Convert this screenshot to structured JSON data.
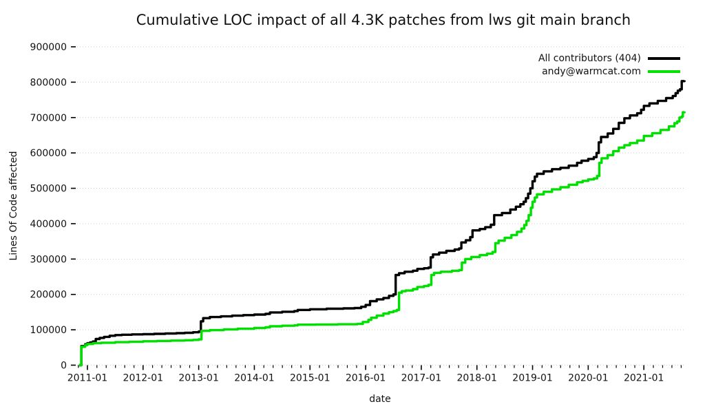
{
  "chart_data": {
    "type": "line",
    "title": "Cumulative LOC impact of all 4.3K patches from lws git main branch",
    "xlabel": "date",
    "ylabel": "Lines Of Code affected",
    "step_mode": "step-after",
    "grid": {
      "horizontal_dotted": true,
      "color": "#c9c9c9"
    },
    "legend_position": "top-right",
    "x_axis": {
      "range": [
        2010.79,
        2021.74
      ],
      "major_ticks": [
        {
          "value": 2011.0,
          "label": "2011-01"
        },
        {
          "value": 2012.0,
          "label": "2012-01"
        },
        {
          "value": 2013.0,
          "label": "2013-01"
        },
        {
          "value": 2014.0,
          "label": "2014-01"
        },
        {
          "value": 2015.0,
          "label": "2015-01"
        },
        {
          "value": 2016.0,
          "label": "2016-01"
        },
        {
          "value": 2017.0,
          "label": "2017-01"
        },
        {
          "value": 2018.0,
          "label": "2018-01"
        },
        {
          "value": 2019.0,
          "label": "2019-01"
        },
        {
          "value": 2020.0,
          "label": "2020-01"
        },
        {
          "value": 2021.0,
          "label": "2021-01"
        }
      ],
      "minor_tick_interval_years": 0.166667
    },
    "y_axis": {
      "range": [
        0,
        900000
      ],
      "tick_values": [
        0,
        100000,
        200000,
        300000,
        400000,
        500000,
        600000,
        700000,
        800000,
        900000
      ]
    },
    "series": [
      {
        "name": "All contributors (404)",
        "color": "#000000",
        "points": [
          [
            2010.85,
            0
          ],
          [
            2010.89,
            54000
          ],
          [
            2010.96,
            59000
          ],
          [
            2011.0,
            62000
          ],
          [
            2011.05,
            64500
          ],
          [
            2011.1,
            67000
          ],
          [
            2011.15,
            74000
          ],
          [
            2011.22,
            77000
          ],
          [
            2011.3,
            80000
          ],
          [
            2011.4,
            83000
          ],
          [
            2011.5,
            85000
          ],
          [
            2011.62,
            86000
          ],
          [
            2011.8,
            87000
          ],
          [
            2012.0,
            87500
          ],
          [
            2012.2,
            88500
          ],
          [
            2012.4,
            89500
          ],
          [
            2012.6,
            90500
          ],
          [
            2012.75,
            91500
          ],
          [
            2012.9,
            93000
          ],
          [
            2013.0,
            95000
          ],
          [
            2013.04,
            124000
          ],
          [
            2013.08,
            133000
          ],
          [
            2013.2,
            136000
          ],
          [
            2013.4,
            138000
          ],
          [
            2013.6,
            140000
          ],
          [
            2013.8,
            141500
          ],
          [
            2014.0,
            143000
          ],
          [
            2014.2,
            145000
          ],
          [
            2014.28,
            149000
          ],
          [
            2014.5,
            151000
          ],
          [
            2014.72,
            153000
          ],
          [
            2014.78,
            156000
          ],
          [
            2015.0,
            158000
          ],
          [
            2015.3,
            159500
          ],
          [
            2015.6,
            160500
          ],
          [
            2015.8,
            161500
          ],
          [
            2015.92,
            165000
          ],
          [
            2016.0,
            170000
          ],
          [
            2016.08,
            181000
          ],
          [
            2016.2,
            186000
          ],
          [
            2016.32,
            190000
          ],
          [
            2016.42,
            196000
          ],
          [
            2016.5,
            200000
          ],
          [
            2016.54,
            255000
          ],
          [
            2016.6,
            260000
          ],
          [
            2016.7,
            264000
          ],
          [
            2016.85,
            267000
          ],
          [
            2016.93,
            272000
          ],
          [
            2017.05,
            274000
          ],
          [
            2017.13,
            276000
          ],
          [
            2017.17,
            305000
          ],
          [
            2017.21,
            313000
          ],
          [
            2017.32,
            318000
          ],
          [
            2017.45,
            323000
          ],
          [
            2017.6,
            327000
          ],
          [
            2017.68,
            330000
          ],
          [
            2017.72,
            347000
          ],
          [
            2017.8,
            353000
          ],
          [
            2017.88,
            362000
          ],
          [
            2017.92,
            381000
          ],
          [
            2018.05,
            385000
          ],
          [
            2018.15,
            390000
          ],
          [
            2018.25,
            397000
          ],
          [
            2018.31,
            424000
          ],
          [
            2018.45,
            430000
          ],
          [
            2018.6,
            440000
          ],
          [
            2018.7,
            448000
          ],
          [
            2018.78,
            455000
          ],
          [
            2018.84,
            462000
          ],
          [
            2018.88,
            472000
          ],
          [
            2018.92,
            485000
          ],
          [
            2018.96,
            500000
          ],
          [
            2019.0,
            520000
          ],
          [
            2019.04,
            533000
          ],
          [
            2019.08,
            541000
          ],
          [
            2019.2,
            548000
          ],
          [
            2019.35,
            554000
          ],
          [
            2019.5,
            558000
          ],
          [
            2019.65,
            564000
          ],
          [
            2019.8,
            572000
          ],
          [
            2019.88,
            578000
          ],
          [
            2020.0,
            583000
          ],
          [
            2020.1,
            588000
          ],
          [
            2020.15,
            600000
          ],
          [
            2020.19,
            630000
          ],
          [
            2020.23,
            645000
          ],
          [
            2020.35,
            655000
          ],
          [
            2020.45,
            668000
          ],
          [
            2020.55,
            685000
          ],
          [
            2020.65,
            698000
          ],
          [
            2020.75,
            706000
          ],
          [
            2020.88,
            712000
          ],
          [
            2020.95,
            722000
          ],
          [
            2021.0,
            733000
          ],
          [
            2021.1,
            740000
          ],
          [
            2021.25,
            747000
          ],
          [
            2021.4,
            755000
          ],
          [
            2021.52,
            761000
          ],
          [
            2021.57,
            769000
          ],
          [
            2021.61,
            776000
          ],
          [
            2021.65,
            780000
          ],
          [
            2021.68,
            803000
          ],
          [
            2021.73,
            805000
          ]
        ]
      },
      {
        "name": "andy@warmcat.com",
        "color": "#00e000",
        "points": [
          [
            2010.85,
            0
          ],
          [
            2010.89,
            52000
          ],
          [
            2010.96,
            57000
          ],
          [
            2011.0,
            60000
          ],
          [
            2011.1,
            62000
          ],
          [
            2011.25,
            63500
          ],
          [
            2011.5,
            65000
          ],
          [
            2011.75,
            66000
          ],
          [
            2012.0,
            67500
          ],
          [
            2012.25,
            68500
          ],
          [
            2012.5,
            69500
          ],
          [
            2012.75,
            70500
          ],
          [
            2012.9,
            71500
          ],
          [
            2013.0,
            73000
          ],
          [
            2013.05,
            97000
          ],
          [
            2013.2,
            99000
          ],
          [
            2013.45,
            101000
          ],
          [
            2013.7,
            103000
          ],
          [
            2014.0,
            105000
          ],
          [
            2014.2,
            107000
          ],
          [
            2014.28,
            110000
          ],
          [
            2014.5,
            111500
          ],
          [
            2014.72,
            112500
          ],
          [
            2014.78,
            114500
          ],
          [
            2015.1,
            115000
          ],
          [
            2015.5,
            115500
          ],
          [
            2015.85,
            116500
          ],
          [
            2015.95,
            122000
          ],
          [
            2016.05,
            128000
          ],
          [
            2016.1,
            134000
          ],
          [
            2016.2,
            140000
          ],
          [
            2016.32,
            146000
          ],
          [
            2016.42,
            150000
          ],
          [
            2016.5,
            153000
          ],
          [
            2016.56,
            156000
          ],
          [
            2016.6,
            205000
          ],
          [
            2016.65,
            209000
          ],
          [
            2016.72,
            211000
          ],
          [
            2016.85,
            215000
          ],
          [
            2016.93,
            221000
          ],
          [
            2017.05,
            224000
          ],
          [
            2017.13,
            227000
          ],
          [
            2017.18,
            255000
          ],
          [
            2017.23,
            261000
          ],
          [
            2017.35,
            264000
          ],
          [
            2017.55,
            267000
          ],
          [
            2017.68,
            269000
          ],
          [
            2017.73,
            290000
          ],
          [
            2017.79,
            300000
          ],
          [
            2017.9,
            306000
          ],
          [
            2018.05,
            311000
          ],
          [
            2018.18,
            315000
          ],
          [
            2018.28,
            320000
          ],
          [
            2018.33,
            345000
          ],
          [
            2018.39,
            352000
          ],
          [
            2018.5,
            360000
          ],
          [
            2018.62,
            368000
          ],
          [
            2018.72,
            377000
          ],
          [
            2018.8,
            386000
          ],
          [
            2018.85,
            396000
          ],
          [
            2018.89,
            408000
          ],
          [
            2018.93,
            424000
          ],
          [
            2018.97,
            445000
          ],
          [
            2019.0,
            462000
          ],
          [
            2019.04,
            474000
          ],
          [
            2019.08,
            483000
          ],
          [
            2019.2,
            490000
          ],
          [
            2019.35,
            497000
          ],
          [
            2019.5,
            503000
          ],
          [
            2019.65,
            510000
          ],
          [
            2019.8,
            517000
          ],
          [
            2019.9,
            521000
          ],
          [
            2020.0,
            525000
          ],
          [
            2020.1,
            528000
          ],
          [
            2020.16,
            535000
          ],
          [
            2020.2,
            572000
          ],
          [
            2020.24,
            585000
          ],
          [
            2020.35,
            594000
          ],
          [
            2020.45,
            605000
          ],
          [
            2020.55,
            615000
          ],
          [
            2020.65,
            622000
          ],
          [
            2020.75,
            628000
          ],
          [
            2020.88,
            635000
          ],
          [
            2021.0,
            648000
          ],
          [
            2021.15,
            656000
          ],
          [
            2021.3,
            665000
          ],
          [
            2021.45,
            675000
          ],
          [
            2021.55,
            684000
          ],
          [
            2021.6,
            689000
          ],
          [
            2021.64,
            700000
          ],
          [
            2021.68,
            703000
          ],
          [
            2021.7,
            715000
          ],
          [
            2021.73,
            717000
          ]
        ]
      }
    ]
  },
  "layout_colors": {
    "background": "#ffffff",
    "text": "#111111",
    "tick": "#000000"
  }
}
